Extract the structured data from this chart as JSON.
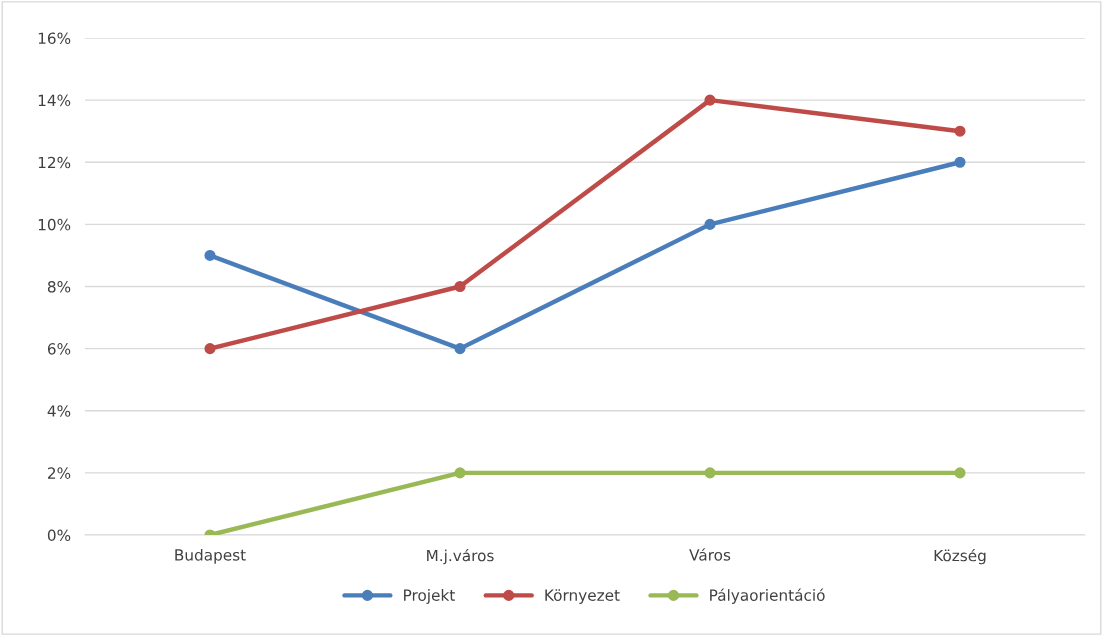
{
  "chart_data": {
    "type": "line",
    "categories": [
      "Budapest",
      "M.j.város",
      "Város",
      "Község"
    ],
    "series": [
      {
        "name": "Projekt",
        "color": "#4a7ebb",
        "values": [
          9,
          6,
          10,
          12
        ]
      },
      {
        "name": "Környezet",
        "color": "#be4b48",
        "values": [
          6,
          8,
          14,
          13
        ]
      },
      {
        "name": "Pályaorientáció",
        "color": "#98b954",
        "values": [
          0,
          2,
          2,
          2
        ]
      }
    ],
    "ylim": [
      0,
      16
    ],
    "yticks": [
      {
        "value": 0,
        "label": "0%"
      },
      {
        "value": 2,
        "label": "2%"
      },
      {
        "value": 4,
        "label": "4%"
      },
      {
        "value": 6,
        "label": "6%"
      },
      {
        "value": 8,
        "label": "8%"
      },
      {
        "value": 10,
        "label": "10%"
      },
      {
        "value": 12,
        "label": "12%"
      },
      {
        "value": 14,
        "label": "14%"
      },
      {
        "value": 16,
        "label": "16%"
      }
    ],
    "grid": "y",
    "legend": "bottom",
    "marker": "circle",
    "line_style": "solid"
  }
}
